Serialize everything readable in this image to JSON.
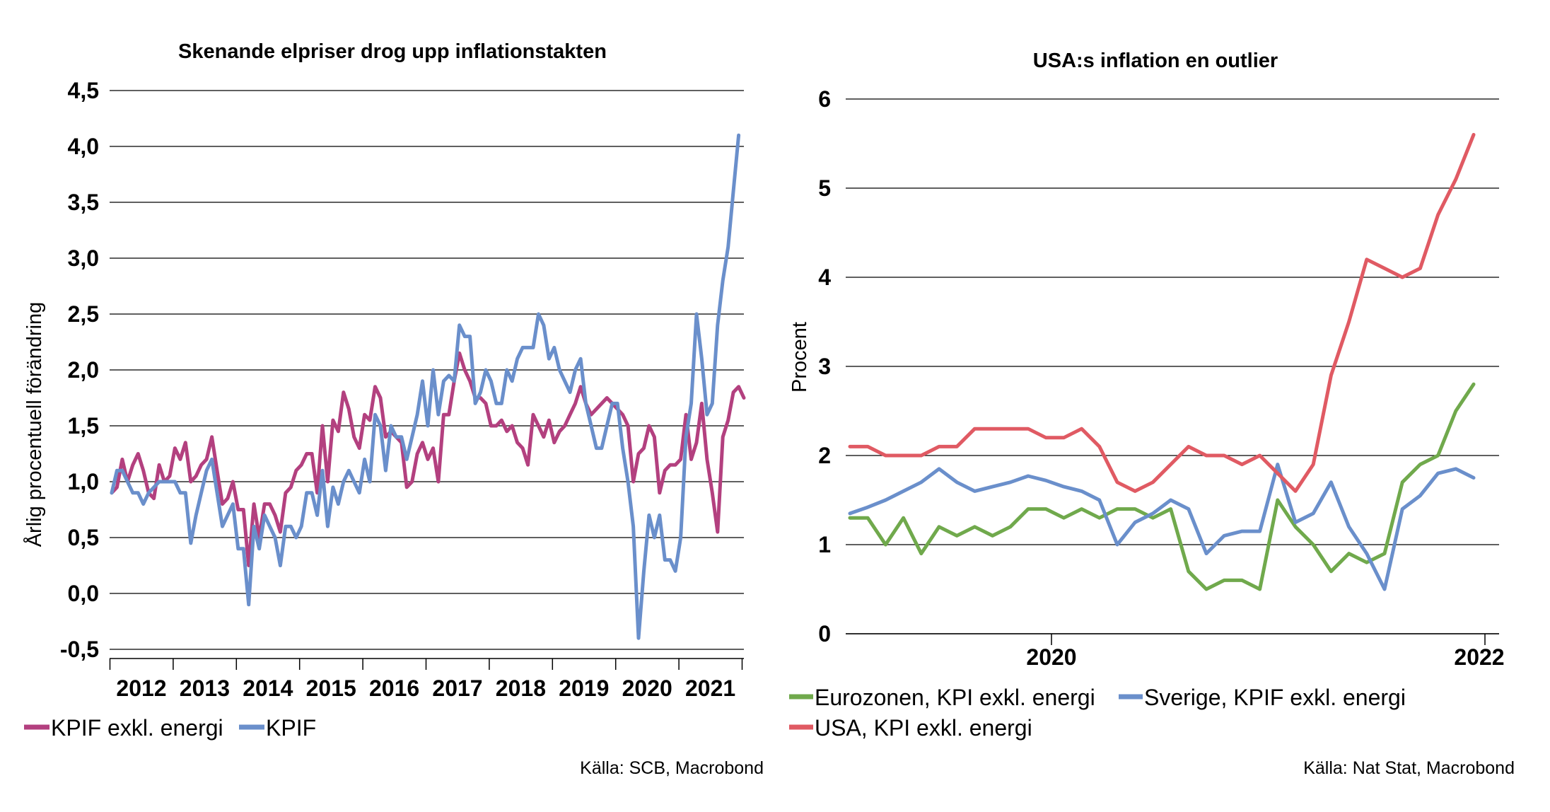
{
  "colors": {
    "kpif_exkl": "#B3407F",
    "kpif": "#6A8FCB",
    "euro": "#70A94C",
    "sverige": "#6A8FCB",
    "usa": "#E05A63",
    "grid": "#000000"
  },
  "chart_data": [
    {
      "type": "line",
      "title": "Skenande elpriser drog upp inflationstakten",
      "ylabel": "Årlig procentuell förändring",
      "xlabel": "",
      "ylim": [
        -0.5,
        4.5
      ],
      "yticks": [
        "4,5",
        "4,0",
        "3,5",
        "3,0",
        "2,5",
        "2,0",
        "1,5",
        "1,0",
        "0,5",
        "0,0",
        "-0,5"
      ],
      "ytick_values": [
        4.5,
        4.0,
        3.5,
        3.0,
        2.5,
        2.0,
        1.5,
        1.0,
        0.5,
        0.0,
        -0.5
      ],
      "x_start": "2012-01",
      "xtick_labels": [
        "2012",
        "2013",
        "2014",
        "2015",
        "2016",
        "2017",
        "2018",
        "2019",
        "2020",
        "2021"
      ],
      "grid": true,
      "legend_position": "bottom-left",
      "series": [
        {
          "name": "KPIF exkl. energi",
          "color_key": "kpif_exkl",
          "values": [
            0.9,
            0.95,
            1.2,
            1.0,
            1.15,
            1.25,
            1.1,
            0.9,
            0.85,
            1.15,
            1.0,
            1.05,
            1.3,
            1.2,
            1.35,
            1.0,
            1.05,
            1.15,
            1.2,
            1.4,
            1.1,
            0.8,
            0.85,
            1.0,
            0.75,
            0.75,
            0.25,
            0.8,
            0.5,
            0.8,
            0.8,
            0.7,
            0.55,
            0.9,
            0.95,
            1.1,
            1.15,
            1.25,
            1.25,
            0.9,
            1.5,
            1.0,
            1.55,
            1.45,
            1.8,
            1.65,
            1.4,
            1.3,
            1.6,
            1.55,
            1.85,
            1.75,
            1.4,
            1.45,
            1.4,
            1.35,
            0.95,
            1.0,
            1.25,
            1.35,
            1.2,
            1.3,
            1.0,
            1.6,
            1.6,
            1.9,
            2.15,
            2.0,
            1.9,
            1.75,
            1.75,
            1.7,
            1.5,
            1.5,
            1.55,
            1.45,
            1.5,
            1.35,
            1.3,
            1.15,
            1.6,
            1.5,
            1.4,
            1.55,
            1.35,
            1.45,
            1.5,
            1.6,
            1.7,
            1.85,
            1.7,
            1.6,
            1.65,
            1.7,
            1.75,
            1.7,
            1.65,
            1.6,
            1.5,
            1.0,
            1.25,
            1.3,
            1.5,
            1.4,
            0.9,
            1.1,
            1.15,
            1.15,
            1.2,
            1.6,
            1.2,
            1.35,
            1.7,
            1.2,
            0.9,
            0.55,
            1.4,
            1.55,
            1.8,
            1.85,
            1.75
          ]
        },
        {
          "name": "KPIF",
          "color_key": "kpif",
          "values": [
            0.9,
            1.1,
            1.1,
            1.0,
            0.9,
            0.9,
            0.8,
            0.9,
            0.95,
            1.0,
            1.0,
            1.0,
            1.0,
            0.9,
            0.9,
            0.45,
            0.7,
            0.9,
            1.1,
            1.2,
            0.9,
            0.6,
            0.7,
            0.8,
            0.4,
            0.4,
            -0.1,
            0.6,
            0.4,
            0.7,
            0.6,
            0.5,
            0.25,
            0.6,
            0.6,
            0.5,
            0.6,
            0.9,
            0.9,
            0.7,
            1.1,
            0.6,
            0.95,
            0.8,
            1.0,
            1.1,
            1.0,
            0.9,
            1.2,
            1.0,
            1.6,
            1.5,
            1.1,
            1.5,
            1.4,
            1.4,
            1.2,
            1.4,
            1.6,
            1.9,
            1.5,
            2.0,
            1.6,
            1.9,
            1.95,
            1.9,
            2.4,
            2.3,
            2.3,
            1.7,
            1.8,
            2.0,
            1.9,
            1.7,
            1.7,
            2.0,
            1.9,
            2.1,
            2.2,
            2.2,
            2.2,
            2.5,
            2.4,
            2.1,
            2.2,
            2.0,
            1.9,
            1.8,
            2.0,
            2.1,
            1.7,
            1.5,
            1.3,
            1.3,
            1.5,
            1.7,
            1.7,
            1.3,
            1.0,
            0.6,
            -0.4,
            0.2,
            0.7,
            0.5,
            0.7,
            0.3,
            0.3,
            0.2,
            0.5,
            1.4,
            1.7,
            2.5,
            2.1,
            1.6,
            1.7,
            2.4,
            2.8,
            3.1,
            3.6,
            4.1
          ]
        }
      ],
      "source": "Källa: SCB, Macrobond"
    },
    {
      "type": "line",
      "title": "USA:s inflation en outlier",
      "ylabel": "Procent",
      "xlabel": "",
      "ylim": [
        0,
        6
      ],
      "yticks": [
        "6",
        "5",
        "4",
        "3",
        "2",
        "1",
        "0"
      ],
      "ytick_values": [
        6,
        5,
        4,
        3,
        2,
        1,
        0
      ],
      "x_start": "2019-01",
      "xtick_labels": [
        "2020",
        "2022"
      ],
      "grid": true,
      "legend_position": "bottom",
      "series": [
        {
          "name": "Eurozonen, KPI exkl. energi",
          "color_key": "euro",
          "values": [
            1.3,
            1.3,
            1.0,
            1.3,
            0.9,
            1.2,
            1.1,
            1.2,
            1.1,
            1.2,
            1.4,
            1.4,
            1.3,
            1.4,
            1.3,
            1.4,
            1.4,
            1.3,
            1.4,
            0.7,
            0.5,
            0.6,
            0.6,
            0.5,
            1.5,
            1.2,
            1.0,
            0.7,
            0.9,
            0.8,
            0.9,
            1.7,
            1.9,
            2.0,
            2.5,
            2.8
          ]
        },
        {
          "name": "Sverige, KPIF exkl. energi",
          "color_key": "sverige",
          "values": [
            1.35,
            1.42,
            1.5,
            1.6,
            1.7,
            1.85,
            1.7,
            1.6,
            1.65,
            1.7,
            1.77,
            1.72,
            1.65,
            1.6,
            1.5,
            1.0,
            1.25,
            1.35,
            1.5,
            1.4,
            0.9,
            1.1,
            1.15,
            1.15,
            1.9,
            1.25,
            1.35,
            1.7,
            1.2,
            0.9,
            0.5,
            1.4,
            1.55,
            1.8,
            1.85,
            1.75
          ]
        },
        {
          "name": "USA, KPI exkl. energi",
          "color_key": "usa",
          "values": [
            2.1,
            2.1,
            2.0,
            2.0,
            2.0,
            2.1,
            2.1,
            2.3,
            2.3,
            2.3,
            2.3,
            2.2,
            2.2,
            2.3,
            2.1,
            1.7,
            1.6,
            1.7,
            1.9,
            2.1,
            2.0,
            2.0,
            1.9,
            2.0,
            1.8,
            1.6,
            1.9,
            2.9,
            3.5,
            4.2,
            4.1,
            4.0,
            4.1,
            4.7,
            5.1,
            5.6
          ]
        }
      ],
      "source": "Källa: Nat Stat, Macrobond"
    }
  ]
}
